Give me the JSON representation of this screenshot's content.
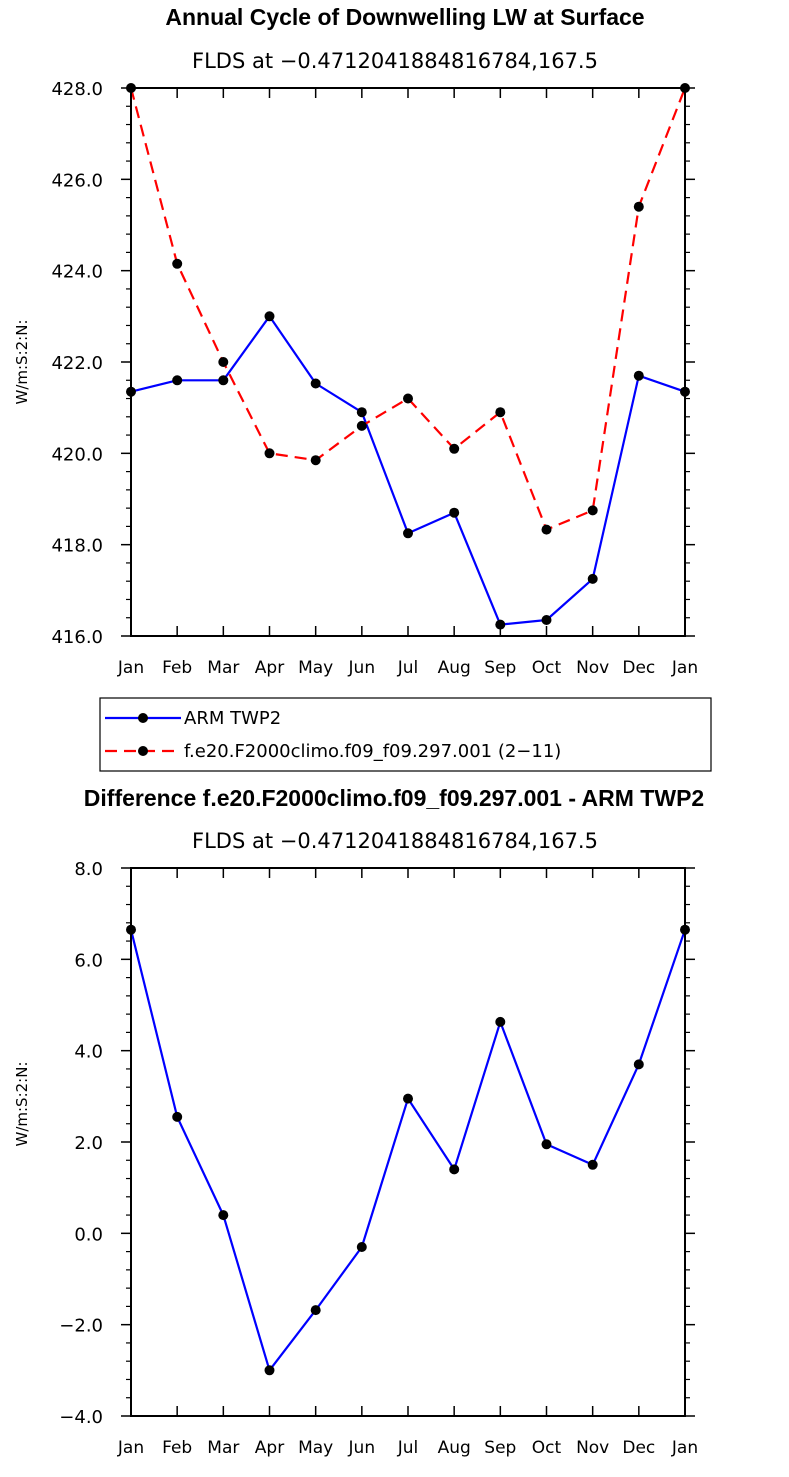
{
  "chart_data": [
    {
      "type": "line",
      "title": "Annual Cycle of Downwelling LW at Surface",
      "subtitle": "FLDS at −0.4712041884816784,167.5",
      "ylabel": "W/m:S:2:N:",
      "xlabel": "",
      "ylim": [
        416.0,
        428.0
      ],
      "yticks": [
        "416.0",
        "418.0",
        "420.0",
        "422.0",
        "424.0",
        "426.0",
        "428.0"
      ],
      "categories": [
        "Jan",
        "Feb",
        "Mar",
        "Apr",
        "May",
        "Jun",
        "Jul",
        "Aug",
        "Sep",
        "Oct",
        "Nov",
        "Dec",
        "Jan"
      ],
      "series": [
        {
          "name": "ARM TWP2",
          "color": "#0000ff",
          "dash": "solid",
          "values": [
            421.35,
            421.6,
            421.6,
            423.0,
            421.53,
            420.9,
            418.25,
            418.7,
            416.25,
            416.35,
            417.25,
            421.7,
            421.35
          ]
        },
        {
          "name": "f.e20.F2000climo.f09_f09.297.001 (2−11)",
          "color": "#ff0000",
          "dash": "dashed",
          "values": [
            428.0,
            424.15,
            422.0,
            420.0,
            419.85,
            420.6,
            421.2,
            420.1,
            420.9,
            418.33,
            418.75,
            425.4,
            428.0
          ]
        }
      ]
    },
    {
      "type": "line",
      "title": "Difference f.e20.F2000climo.f09_f09.297.001 - ARM TWP2",
      "subtitle": "FLDS at −0.4712041884816784,167.5",
      "ylabel": "W/m:S:2:N:",
      "xlabel": "",
      "ylim": [
        -4.0,
        8.0
      ],
      "yticks": [
        "−4.0",
        "−2.0",
        "0.0",
        "2.0",
        "4.0",
        "6.0",
        "8.0"
      ],
      "categories": [
        "Jan",
        "Feb",
        "Mar",
        "Apr",
        "May",
        "Jun",
        "Jul",
        "Aug",
        "Sep",
        "Oct",
        "Nov",
        "Dec",
        "Jan"
      ],
      "series": [
        {
          "name": "Difference",
          "color": "#0000ff",
          "dash": "solid",
          "values": [
            6.65,
            2.55,
            0.4,
            -3.0,
            -1.68,
            -0.3,
            2.95,
            1.4,
            4.63,
            1.95,
            1.5,
            3.7,
            6.65
          ]
        }
      ]
    }
  ]
}
